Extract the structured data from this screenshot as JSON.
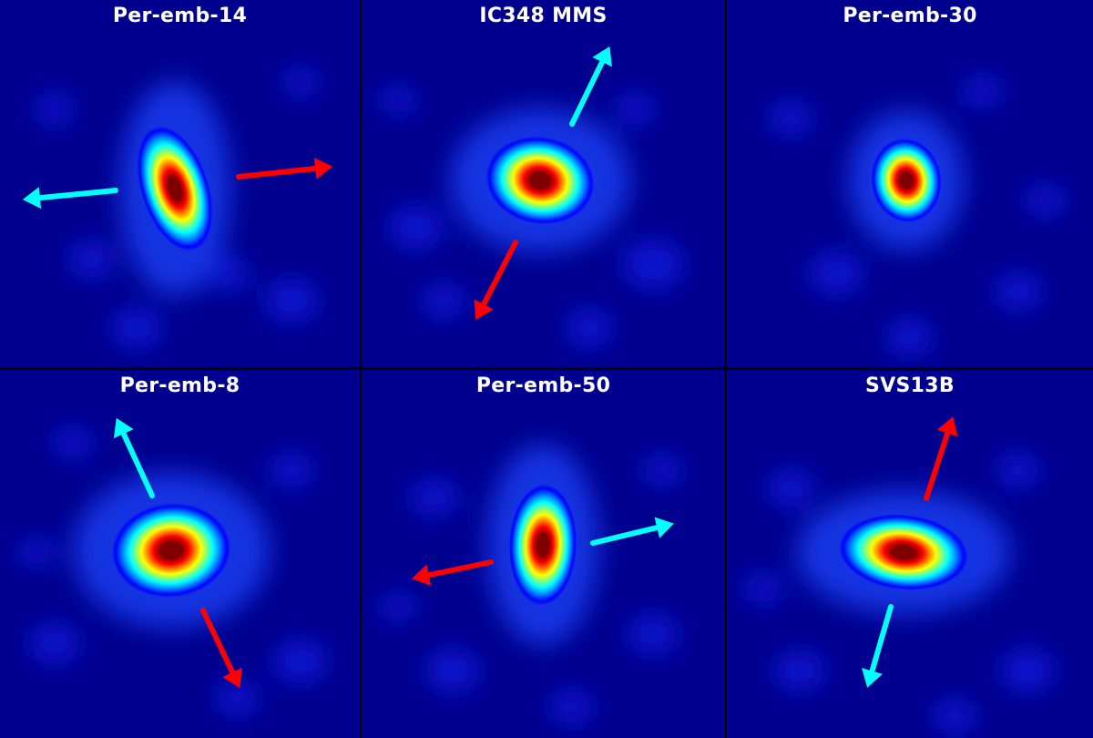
{
  "panels": [
    {
      "title": "Per-emb-14",
      "source": {
        "rx": 0.52,
        "ry": 1.0,
        "angle": -18
      },
      "outflows": [
        {
          "lobe": "blueshifted",
          "color": "#00ffff"
        },
        {
          "lobe": "redshifted",
          "color": "#ff0000"
        }
      ]
    },
    {
      "title": "IC348 MMS",
      "source": {
        "rx": 0.9,
        "ry": 0.72,
        "angle": 10
      },
      "outflows": [
        {
          "lobe": "blueshifted",
          "color": "#00ffff"
        },
        {
          "lobe": "redshifted",
          "color": "#ff0000"
        }
      ]
    },
    {
      "title": "Per-emb-30",
      "source": {
        "rx": 0.6,
        "ry": 0.72,
        "angle": -8
      },
      "outflows": []
    },
    {
      "title": "Per-emb-8",
      "source": {
        "rx": 0.95,
        "ry": 0.75,
        "angle": -6
      },
      "outflows": [
        {
          "lobe": "blueshifted",
          "color": "#00ffff"
        },
        {
          "lobe": "redshifted",
          "color": "#ff0000"
        }
      ]
    },
    {
      "title": "Per-emb-50",
      "source": {
        "rx": 0.56,
        "ry": 1.0,
        "angle": 2
      },
      "outflows": [
        {
          "lobe": "blueshifted",
          "color": "#00ffff"
        },
        {
          "lobe": "redshifted",
          "color": "#ff0000"
        }
      ]
    },
    {
      "title": "SVS13B",
      "source": {
        "rx": 1.0,
        "ry": 0.58,
        "angle": 6
      },
      "outflows": [
        {
          "lobe": "redshifted",
          "color": "#ff0000"
        },
        {
          "lobe": "blueshifted",
          "color": "#00ffff"
        }
      ]
    }
  ],
  "colormap": {
    "name": "jet",
    "stops": [
      "#00007f",
      "#0000ff",
      "#0080ff",
      "#00ffff",
      "#80ff80",
      "#ffff00",
      "#ff8000",
      "#ff0000",
      "#7f0000"
    ]
  },
  "background_color": "#00008f"
}
